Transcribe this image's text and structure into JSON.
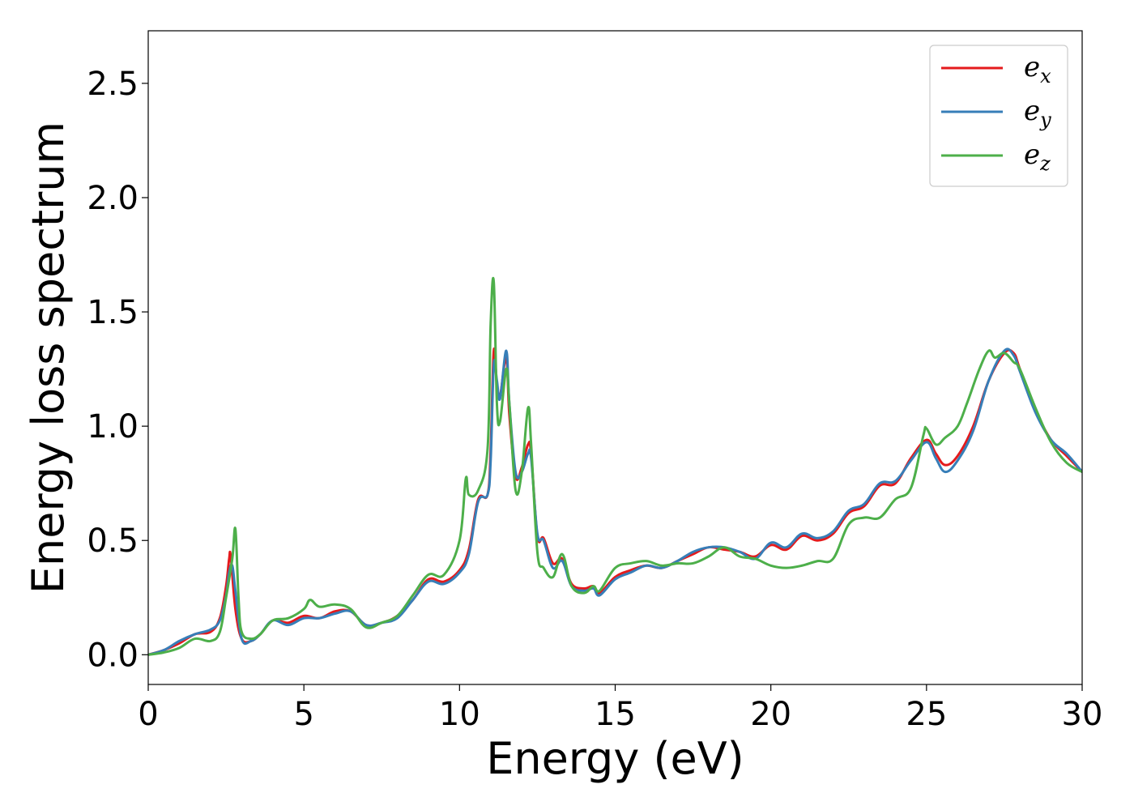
{
  "chart_data": {
    "type": "line",
    "xlabel": "Energy (eV)",
    "ylabel": "Energy loss spectrum",
    "xlim": [
      0,
      30
    ],
    "ylim": [
      -0.13,
      2.73
    ],
    "xticks": [
      0,
      5,
      10,
      15,
      20,
      25,
      30
    ],
    "xtick_labels": [
      "0",
      "5",
      "10",
      "15",
      "20",
      "25",
      "30"
    ],
    "yticks": [
      0.0,
      0.5,
      1.0,
      1.5,
      2.0,
      2.5
    ],
    "ytick_labels": [
      "0.0",
      "0.5",
      "1.0",
      "1.5",
      "2.0",
      "2.5"
    ],
    "grid": false,
    "legend_position": "top-right",
    "series": [
      {
        "name": "e_x",
        "legend_base": "e",
        "legend_sub": "x",
        "color": "#e41a1c",
        "x": [
          0,
          0.5,
          1.0,
          1.5,
          2.0,
          2.3,
          2.5,
          2.6,
          2.65,
          2.8,
          3.0,
          3.3,
          3.6,
          4.0,
          4.5,
          5.0,
          5.5,
          6.0,
          6.5,
          7.0,
          7.5,
          8.0,
          8.5,
          9.0,
          9.5,
          10.0,
          10.3,
          10.6,
          10.9,
          11.0,
          11.1,
          11.2,
          11.3,
          11.5,
          11.6,
          11.8,
          12.0,
          12.2,
          12.3,
          12.5,
          12.7,
          13.0,
          13.3,
          13.6,
          14.0,
          14.3,
          14.5,
          15.0,
          15.5,
          16.0,
          16.5,
          17.0,
          17.5,
          18.0,
          18.5,
          19.0,
          19.5,
          20.0,
          20.5,
          21.0,
          21.5,
          22.0,
          22.5,
          23.0,
          23.5,
          24.0,
          24.5,
          25.0,
          25.3,
          25.6,
          26.0,
          26.5,
          27.0,
          27.5,
          27.8,
          28.0,
          28.5,
          29.0,
          29.5,
          30.0
        ],
        "y": [
          0.0,
          0.02,
          0.05,
          0.09,
          0.1,
          0.16,
          0.3,
          0.42,
          0.43,
          0.2,
          0.07,
          0.06,
          0.09,
          0.15,
          0.14,
          0.17,
          0.16,
          0.19,
          0.19,
          0.13,
          0.14,
          0.17,
          0.24,
          0.33,
          0.32,
          0.37,
          0.46,
          0.68,
          0.7,
          0.9,
          1.33,
          1.18,
          1.13,
          1.3,
          1.05,
          0.78,
          0.82,
          0.92,
          0.88,
          0.52,
          0.51,
          0.4,
          0.42,
          0.31,
          0.29,
          0.3,
          0.27,
          0.34,
          0.37,
          0.39,
          0.38,
          0.41,
          0.44,
          0.47,
          0.46,
          0.45,
          0.43,
          0.48,
          0.46,
          0.52,
          0.5,
          0.53,
          0.62,
          0.65,
          0.74,
          0.75,
          0.86,
          0.94,
          0.88,
          0.83,
          0.87,
          1.0,
          1.2,
          1.32,
          1.32,
          1.25,
          1.07,
          0.94,
          0.87,
          0.8
        ]
      },
      {
        "name": "e_y",
        "legend_base": "e",
        "legend_sub": "y",
        "color": "#377eb8",
        "x": [
          0,
          0.5,
          1.0,
          1.5,
          2.0,
          2.3,
          2.5,
          2.6,
          2.7,
          2.8,
          3.0,
          3.3,
          3.6,
          4.0,
          4.5,
          5.0,
          5.5,
          6.0,
          6.5,
          7.0,
          7.5,
          8.0,
          8.5,
          9.0,
          9.5,
          10.0,
          10.3,
          10.6,
          10.9,
          11.0,
          11.1,
          11.2,
          11.3,
          11.5,
          11.6,
          11.8,
          12.0,
          12.2,
          12.3,
          12.5,
          12.7,
          13.0,
          13.3,
          13.6,
          14.0,
          14.3,
          14.5,
          15.0,
          15.5,
          16.0,
          16.5,
          17.0,
          17.5,
          18.0,
          18.5,
          19.0,
          19.5,
          20.0,
          20.5,
          21.0,
          21.5,
          22.0,
          22.5,
          23.0,
          23.5,
          24.0,
          24.5,
          25.0,
          25.3,
          25.6,
          26.0,
          26.5,
          27.0,
          27.5,
          27.8,
          28.0,
          28.5,
          29.0,
          29.5,
          30.0
        ],
        "y": [
          0.0,
          0.02,
          0.06,
          0.09,
          0.11,
          0.15,
          0.26,
          0.36,
          0.39,
          0.28,
          0.07,
          0.06,
          0.09,
          0.15,
          0.13,
          0.16,
          0.16,
          0.18,
          0.19,
          0.13,
          0.14,
          0.16,
          0.24,
          0.32,
          0.31,
          0.36,
          0.44,
          0.67,
          0.7,
          0.85,
          1.27,
          1.2,
          1.12,
          1.33,
          1.1,
          0.8,
          0.8,
          0.88,
          0.86,
          0.53,
          0.5,
          0.38,
          0.41,
          0.3,
          0.28,
          0.29,
          0.26,
          0.33,
          0.36,
          0.39,
          0.38,
          0.41,
          0.45,
          0.47,
          0.47,
          0.45,
          0.42,
          0.49,
          0.47,
          0.53,
          0.51,
          0.54,
          0.63,
          0.66,
          0.75,
          0.76,
          0.85,
          0.93,
          0.86,
          0.8,
          0.85,
          0.98,
          1.2,
          1.33,
          1.31,
          1.24,
          1.06,
          0.94,
          0.88,
          0.8
        ]
      },
      {
        "name": "e_z",
        "legend_base": "e",
        "legend_sub": "z",
        "color": "#4daf4a",
        "x": [
          0,
          0.5,
          1.0,
          1.5,
          2.0,
          2.3,
          2.5,
          2.7,
          2.8,
          2.9,
          3.0,
          3.3,
          3.6,
          4.0,
          4.5,
          5.0,
          5.2,
          5.5,
          6.0,
          6.5,
          7.0,
          7.5,
          8.0,
          8.5,
          9.0,
          9.5,
          10.0,
          10.2,
          10.3,
          10.6,
          10.9,
          11.0,
          11.1,
          11.2,
          11.3,
          11.5,
          11.6,
          11.8,
          12.0,
          12.2,
          12.3,
          12.5,
          12.7,
          13.0,
          13.3,
          13.6,
          14.0,
          14.3,
          14.5,
          15.0,
          15.5,
          16.0,
          16.5,
          17.0,
          17.5,
          18.0,
          18.5,
          19.0,
          19.5,
          20.0,
          20.5,
          21.0,
          21.5,
          22.0,
          22.5,
          23.0,
          23.5,
          24.0,
          24.5,
          24.9,
          25.0,
          25.3,
          25.6,
          26.0,
          26.3,
          26.7,
          27.0,
          27.2,
          27.5,
          27.8,
          28.0,
          28.5,
          29.0,
          29.5,
          30.0
        ],
        "y": [
          0.0,
          0.01,
          0.03,
          0.07,
          0.06,
          0.1,
          0.25,
          0.42,
          0.55,
          0.25,
          0.1,
          0.07,
          0.09,
          0.15,
          0.16,
          0.2,
          0.24,
          0.21,
          0.22,
          0.2,
          0.12,
          0.14,
          0.17,
          0.26,
          0.35,
          0.35,
          0.5,
          0.77,
          0.7,
          0.72,
          0.9,
          1.45,
          1.63,
          1.1,
          1.02,
          1.25,
          1.1,
          0.72,
          0.8,
          1.08,
          0.92,
          0.45,
          0.38,
          0.34,
          0.44,
          0.3,
          0.27,
          0.3,
          0.28,
          0.38,
          0.4,
          0.41,
          0.39,
          0.4,
          0.4,
          0.43,
          0.47,
          0.43,
          0.42,
          0.39,
          0.38,
          0.39,
          0.41,
          0.42,
          0.57,
          0.6,
          0.6,
          0.68,
          0.73,
          0.96,
          0.99,
          0.92,
          0.95,
          1.0,
          1.1,
          1.25,
          1.33,
          1.3,
          1.32,
          1.28,
          1.25,
          1.08,
          0.93,
          0.84,
          0.8
        ]
      }
    ]
  }
}
